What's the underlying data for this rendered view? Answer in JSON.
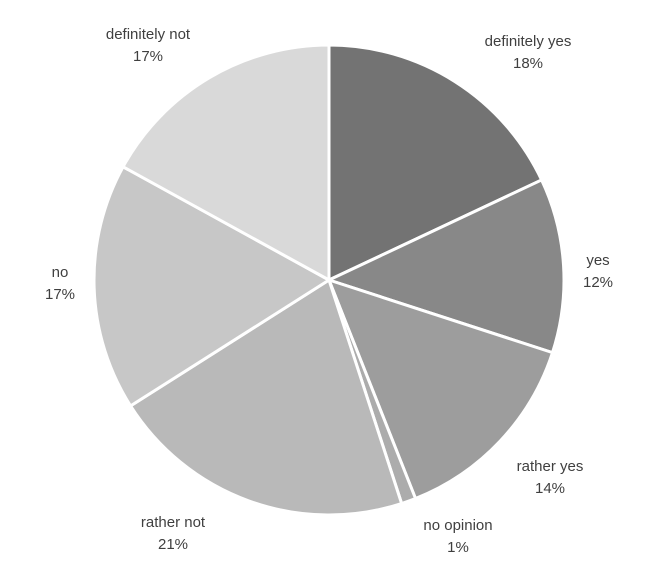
{
  "chart_data": {
    "type": "pie",
    "title": "",
    "start_angle_deg": 0,
    "direction": "clockwise",
    "slices": [
      {
        "label": "definitely yes",
        "value": 18,
        "display": "18%",
        "color": "#737373"
      },
      {
        "label": "yes",
        "value": 12,
        "display": "12%",
        "color": "#888888"
      },
      {
        "label": "rather yes",
        "value": 14,
        "display": "14%",
        "color": "#9d9d9d"
      },
      {
        "label": "no opinion",
        "value": 1,
        "display": "1%",
        "color": "#acacac"
      },
      {
        "label": "rather not",
        "value": 21,
        "display": "21%",
        "color": "#b9b9b9"
      },
      {
        "label": "no",
        "value": 17,
        "display": "17%",
        "color": "#c7c7c7"
      },
      {
        "label": "definitely not",
        "value": 17,
        "display": "17%",
        "color": "#d9d9d9"
      }
    ],
    "legend": "none",
    "data_labels": "outside"
  }
}
